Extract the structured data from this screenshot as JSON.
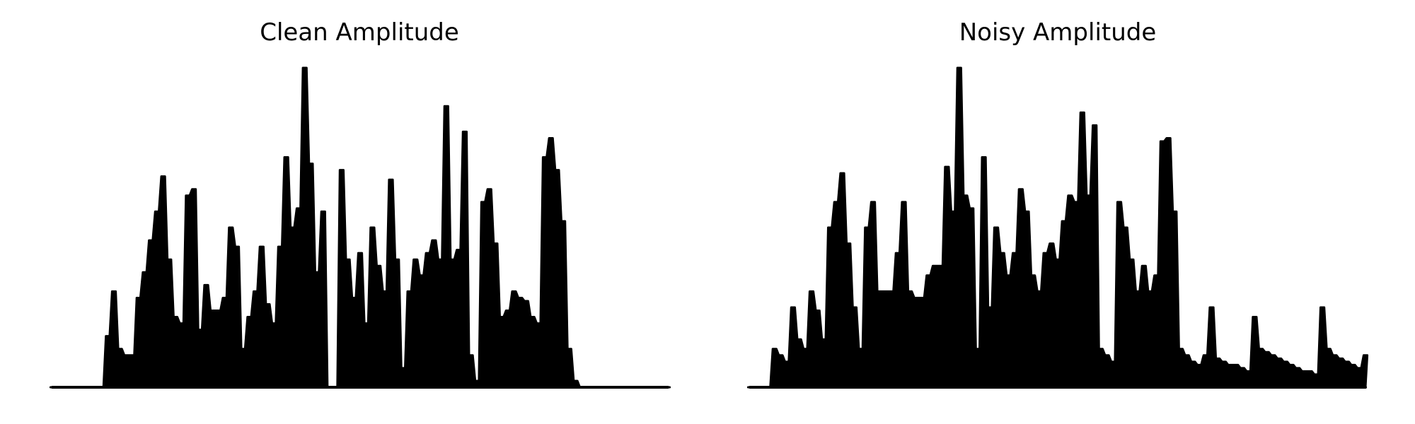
{
  "chart_data": [
    {
      "type": "area",
      "title": "Clean Amplitude",
      "axes_visible": false,
      "ylim": [
        0,
        1
      ],
      "color": "#000000",
      "x": [
        0,
        1,
        2,
        3,
        4,
        5,
        6,
        7,
        8,
        9,
        10,
        11,
        12,
        13,
        14,
        15,
        16,
        17,
        18,
        19,
        20,
        21,
        22,
        23,
        24,
        25,
        26,
        27,
        28,
        29,
        30,
        31,
        32,
        33,
        34,
        35,
        36,
        37,
        38,
        39,
        40,
        41,
        42,
        43,
        44,
        45,
        46,
        47,
        48,
        49,
        50,
        51,
        52,
        53,
        54,
        55,
        56,
        57,
        58,
        59,
        60,
        61,
        62,
        63,
        64,
        65,
        66,
        67,
        68,
        69,
        70,
        71,
        72,
        73,
        74,
        75,
        76,
        77,
        78,
        79,
        80,
        81,
        82,
        83,
        84,
        85,
        86,
        87,
        88,
        89,
        90,
        91,
        92,
        93,
        94,
        95,
        96,
        97,
        98,
        99,
        100
      ],
      "y": [
        0,
        0,
        0,
        0,
        0,
        0,
        0,
        0,
        0,
        0.16,
        0.3,
        0.12,
        0.1,
        0.1,
        0.28,
        0.36,
        0.46,
        0.55,
        0.66,
        0.4,
        0.22,
        0.2,
        0.6,
        0.62,
        0.18,
        0.32,
        0.24,
        0.24,
        0.28,
        0.5,
        0.44,
        0.12,
        0.22,
        0.3,
        0.44,
        0.26,
        0.2,
        0.44,
        0.72,
        0.5,
        0.56,
        1,
        0.7,
        0.36,
        0.55,
        0.0,
        0.0,
        0.68,
        0.4,
        0.28,
        0.42,
        0.2,
        0.5,
        0.38,
        0.3,
        0.65,
        0.4,
        0.06,
        0.3,
        0.4,
        0.35,
        0.42,
        0.46,
        0.4,
        0.88,
        0.4,
        0.43,
        0.8,
        0.1,
        0.02,
        0.58,
        0.62,
        0.45,
        0.22,
        0.24,
        0.3,
        0.28,
        0.27,
        0.22,
        0.2,
        0.72,
        0.78,
        0.68,
        0.52,
        0.12,
        0.02,
        0,
        0,
        0,
        0,
        0,
        0,
        0,
        0,
        0,
        0,
        0,
        0,
        0,
        0,
        0
      ]
    },
    {
      "type": "area",
      "title": "Noisy Amplitude",
      "axes_visible": false,
      "ylim": [
        0,
        1
      ],
      "color": "#000000",
      "x": [
        0,
        1,
        2,
        3,
        4,
        5,
        6,
        7,
        8,
        9,
        10,
        11,
        12,
        13,
        14,
        15,
        16,
        17,
        18,
        19,
        20,
        21,
        22,
        23,
        24,
        25,
        26,
        27,
        28,
        29,
        30,
        31,
        32,
        33,
        34,
        35,
        36,
        37,
        38,
        39,
        40,
        41,
        42,
        43,
        44,
        45,
        46,
        47,
        48,
        49,
        50,
        51,
        52,
        53,
        54,
        55,
        56,
        57,
        58,
        59,
        60,
        61,
        62,
        63,
        64,
        65,
        66,
        67,
        68,
        69,
        70,
        71,
        72,
        73,
        74,
        75,
        76,
        77,
        78,
        79,
        80,
        81,
        82,
        83,
        84,
        85,
        86,
        87,
        88,
        89,
        90,
        91,
        92,
        93,
        94,
        95,
        96,
        97,
        98,
        99,
        100
      ],
      "y": [
        0,
        0,
        0,
        0,
        0.12,
        0.1,
        0.08,
        0.25,
        0.15,
        0.12,
        0.3,
        0.24,
        0.15,
        0.5,
        0.58,
        0.67,
        0.45,
        0.25,
        0.12,
        0.5,
        0.58,
        0.3,
        0.3,
        0.3,
        0.42,
        0.58,
        0.3,
        0.28,
        0.28,
        0.35,
        0.38,
        0.38,
        0.69,
        0.55,
        1,
        0.6,
        0.56,
        0.12,
        0.72,
        0.25,
        0.5,
        0.42,
        0.35,
        0.42,
        0.62,
        0.55,
        0.35,
        0.3,
        0.42,
        0.45,
        0.4,
        0.52,
        0.6,
        0.58,
        0.86,
        0.6,
        0.82,
        0.12,
        0.1,
        0.08,
        0.58,
        0.5,
        0.4,
        0.3,
        0.38,
        0.3,
        0.35,
        0.77,
        0.78,
        0.55,
        0.12,
        0.1,
        0.08,
        0.07,
        0.1,
        0.25,
        0.09,
        0.08,
        0.07,
        0.07,
        0.06,
        0.05,
        0.22,
        0.12,
        0.11,
        0.1,
        0.09,
        0.08,
        0.07,
        0.06,
        0.05,
        0.05,
        0.04,
        0.25,
        0.12,
        0.1,
        0.09,
        0.08,
        0.07,
        0.06,
        0.1
      ]
    }
  ]
}
